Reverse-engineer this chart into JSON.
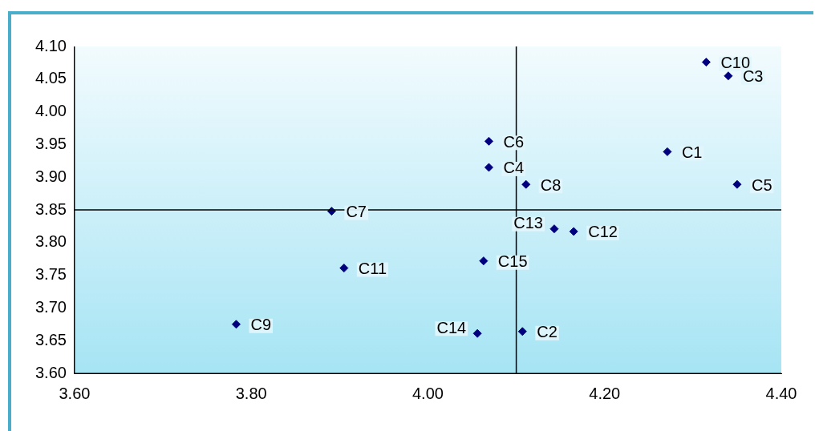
{
  "chart_data": {
    "type": "scatter",
    "marker": "diamond",
    "grid": false,
    "legend": false,
    "series": [
      {
        "color": "#00007f",
        "x": [
          4.271,
          4.107,
          4.34,
          4.069,
          4.35,
          4.069,
          3.891,
          4.111,
          3.783,
          4.315,
          3.905,
          4.165,
          4.143,
          4.056,
          4.063
        ],
        "values": [
          3.939,
          3.664,
          4.055,
          3.915,
          3.889,
          3.955,
          3.848,
          3.889,
          3.675,
          4.076,
          3.761,
          3.817,
          3.821,
          3.661,
          3.772
        ]
      }
    ],
    "xlim": [
      3.6,
      4.4
    ],
    "ylim": [
      3.6,
      4.1
    ],
    "xticks": [
      {
        "value": 3.6,
        "label": "3.60"
      },
      {
        "value": 3.8,
        "label": "3.80"
      },
      {
        "value": 4.0,
        "label": "4.00"
      },
      {
        "value": 4.2,
        "label": "4.20"
      },
      {
        "value": 4.4,
        "label": "4.40"
      }
    ],
    "yticks": [
      {
        "value": 3.6,
        "label": "3.60"
      },
      {
        "value": 3.65,
        "label": "3.65"
      },
      {
        "value": 3.7,
        "label": "3.70"
      },
      {
        "value": 3.75,
        "label": "3.75"
      },
      {
        "value": 3.8,
        "label": "3.80"
      },
      {
        "value": 3.85,
        "label": "3.85"
      },
      {
        "value": 3.9,
        "label": "3.90"
      },
      {
        "value": 3.95,
        "label": "3.95"
      },
      {
        "value": 4.0,
        "label": "4.00"
      },
      {
        "value": 4.05,
        "label": "4.05"
      },
      {
        "value": 4.1,
        "label": "4.10"
      }
    ],
    "ref_lines": [
      {
        "axis": "x",
        "value": 4.1,
        "color": "#000000"
      },
      {
        "axis": "y",
        "value": 3.85,
        "color": "#000000"
      }
    ],
    "annotations": [
      {
        "text": "C1",
        "x": 4.271,
        "y": 3.939
      },
      {
        "text": "C2",
        "x": 4.107,
        "y": 3.664
      },
      {
        "text": "C3",
        "x": 4.34,
        "y": 4.055
      },
      {
        "text": "C4",
        "x": 4.069,
        "y": 3.915
      },
      {
        "text": "C5",
        "x": 4.35,
        "y": 3.889
      },
      {
        "text": "C6",
        "x": 4.069,
        "y": 3.955
      },
      {
        "text": "C7",
        "x": 3.891,
        "y": 3.848
      },
      {
        "text": "C8",
        "x": 4.111,
        "y": 3.889
      },
      {
        "text": "C9",
        "x": 3.783,
        "y": 3.675
      },
      {
        "text": "C10",
        "x": 4.315,
        "y": 4.076
      },
      {
        "text": "C11",
        "x": 3.905,
        "y": 3.761
      },
      {
        "text": "C12",
        "x": 4.165,
        "y": 3.817
      },
      {
        "text": "C13",
        "x": 4.143,
        "y": 3.821
      },
      {
        "text": "C14",
        "x": 4.056,
        "y": 3.661
      },
      {
        "text": "C15",
        "x": 4.063,
        "y": 3.772
      }
    ]
  }
}
